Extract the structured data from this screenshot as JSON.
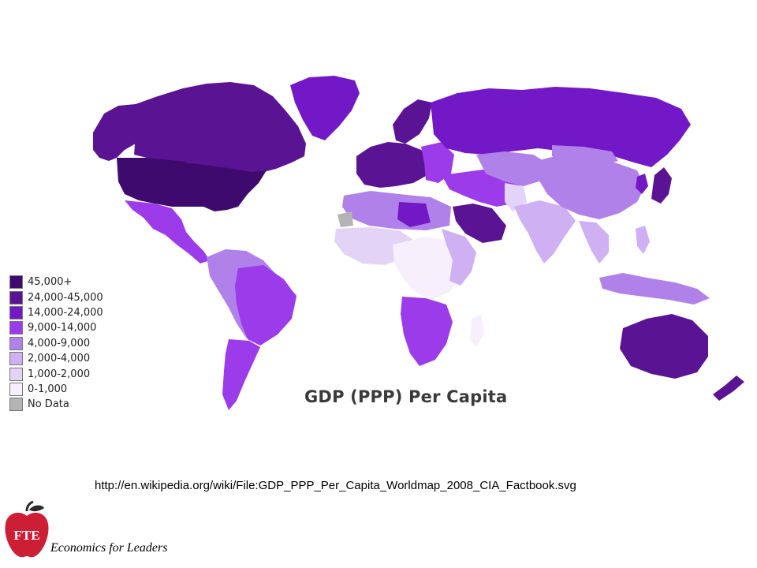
{
  "map": {
    "title": "GDP (PPP) Per Capita",
    "legend": [
      {
        "label": "45,000+",
        "color": "#3f0a6e"
      },
      {
        "label": "24,000-45,000",
        "color": "#5a1493"
      },
      {
        "label": "14,000-24,000",
        "color": "#7318c6"
      },
      {
        "label": "9,000-14,000",
        "color": "#9b3bea"
      },
      {
        "label": "4,000-9,000",
        "color": "#b181ea"
      },
      {
        "label": "2,000-4,000",
        "color": "#cfb0f3"
      },
      {
        "label": "1,000-2,000",
        "color": "#e3d3f7"
      },
      {
        "label": "0-1,000",
        "color": "#f7f0fc"
      },
      {
        "label": "No Data",
        "color": "#b4b4b4"
      }
    ]
  },
  "source_url": "http://en.wikipedia.org/wiki/File:GDP_PPP_Per_Capita_Worldmap_2008_CIA_Factbook.svg",
  "footer": {
    "logo_text": "FTE",
    "logo_color": "#cc1f36",
    "tagline": "Economics for Leaders"
  }
}
